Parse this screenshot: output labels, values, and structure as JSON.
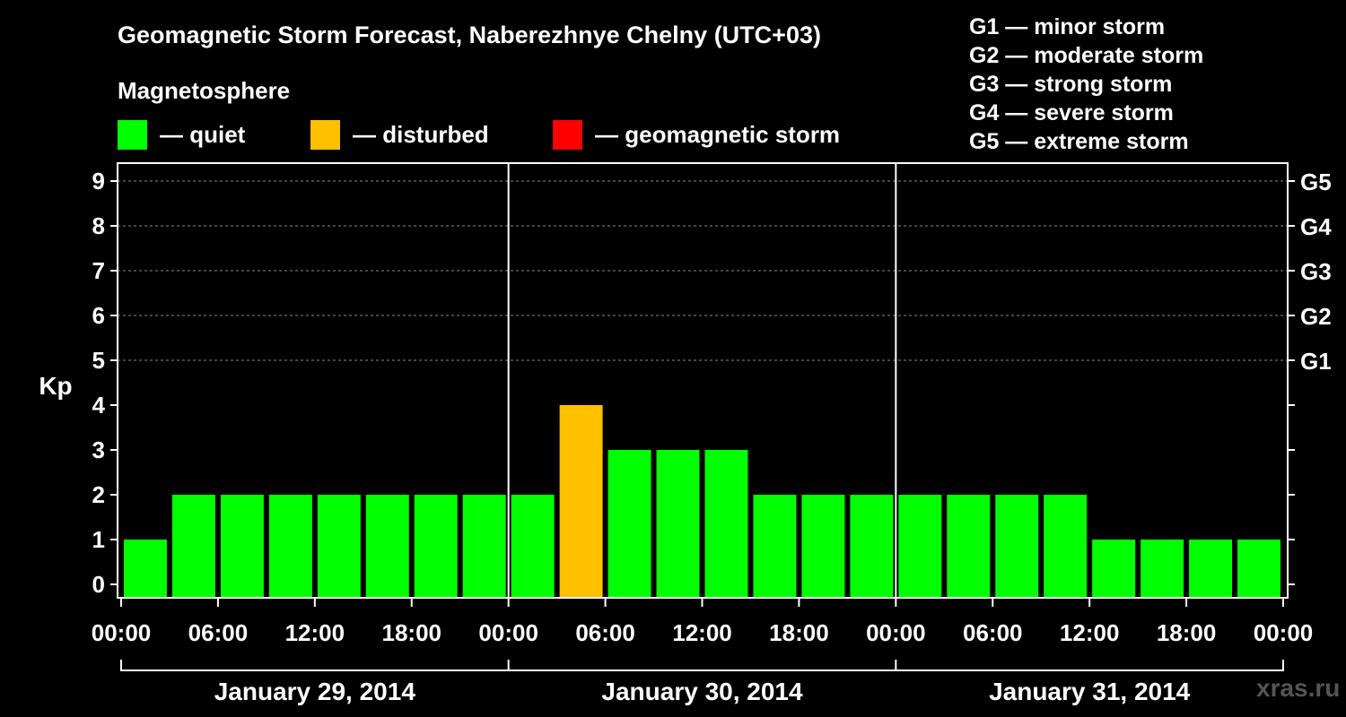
{
  "title": "Geomagnetic Storm Forecast, Naberezhnye Chelny (UTC+03)",
  "legend": {
    "heading": "Magnetosphere",
    "items": [
      {
        "label": "— quiet",
        "color": "#00ff00"
      },
      {
        "label": "— disturbed",
        "color": "#ffc000"
      },
      {
        "label": "— geomagnetic storm",
        "color": "#ff0000"
      }
    ]
  },
  "storm_scale": [
    "G1 — minor storm",
    "G2 — moderate storm",
    "G3 — strong storm",
    "G4 — severe storm",
    "G5 — extreme storm"
  ],
  "watermark": "xras.ru",
  "chart_data": {
    "type": "bar",
    "ylabel": "Kp",
    "ylim": [
      0,
      9
    ],
    "yticks": [
      0,
      1,
      2,
      3,
      4,
      5,
      6,
      7,
      8,
      9
    ],
    "right_ticks": [
      {
        "value": 5,
        "label": "G1"
      },
      {
        "value": 6,
        "label": "G2"
      },
      {
        "value": 7,
        "label": "G3"
      },
      {
        "value": 8,
        "label": "G4"
      },
      {
        "value": 9,
        "label": "G5"
      }
    ],
    "xtick_labels": [
      "00:00",
      "06:00",
      "12:00",
      "18:00",
      "00:00",
      "06:00",
      "12:00",
      "18:00",
      "00:00",
      "06:00",
      "12:00",
      "18:00",
      "00:00"
    ],
    "days": [
      "January 29, 2014",
      "January 30, 2014",
      "January 31, 2014"
    ],
    "values": [
      1,
      2,
      2,
      2,
      2,
      2,
      2,
      2,
      2,
      4,
      3,
      3,
      3,
      2,
      2,
      2,
      2,
      2,
      2,
      2,
      1,
      1,
      1,
      1
    ],
    "thresholds": {
      "disturbed": 4,
      "storm": 5
    }
  }
}
